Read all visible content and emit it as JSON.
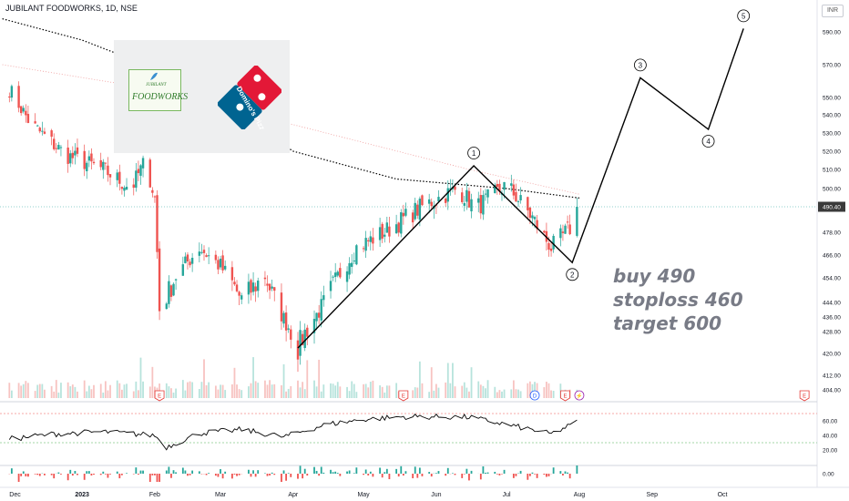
{
  "header": {
    "title": "JUBILANT FOODWORKS, 1D, NSE",
    "currency_button": "INR"
  },
  "logos": {
    "jubilant_small": "JUBILANT",
    "jubilant_big": "FOODWORKS",
    "dominos_text": "Domino's Pizza"
  },
  "trade_note": {
    "line1": "buy 490",
    "line2": "stoploss 460",
    "line3": "target 600"
  },
  "colors": {
    "up": "#26a69a",
    "down": "#ef5350",
    "wave": "#000000",
    "price_tag": "#3a3a3a"
  },
  "chart_data": [
    {
      "type": "candlestick",
      "title": "JUBILANT FOODWORKS, 1D, NSE",
      "currency": "INR",
      "ylim": [
        400,
        600
      ],
      "y_ticks": [
        404,
        412,
        420,
        428,
        436,
        444,
        454,
        466,
        478,
        490.4,
        500,
        510,
        520,
        530,
        540,
        550,
        570,
        590
      ],
      "y_tick_labels": [
        "404.00",
        "412.00",
        "420.00",
        "428.00",
        "436.00",
        "444.00",
        "454.00",
        "466.00",
        "478.00",
        "490.40",
        "500.00",
        "510.00",
        "520.00",
        "530.00",
        "540.00",
        "550.00",
        "570.00",
        "590.00"
      ],
      "last_price": 490.4,
      "x_ticks": [
        "Dec",
        "2023",
        "Feb",
        "Mar",
        "Apr",
        "May",
        "Jun",
        "Jul",
        "Aug",
        "Sep",
        "Oct"
      ],
      "price_anchors": [
        {
          "date": "2022-12-01",
          "close": 555
        },
        {
          "date": "2022-12-10",
          "close": 535
        },
        {
          "date": "2022-12-25",
          "close": 518
        },
        {
          "date": "2023-01-10",
          "close": 510
        },
        {
          "date": "2023-01-22",
          "close": 500
        },
        {
          "date": "2023-01-28",
          "close": 515
        },
        {
          "date": "2023-02-01",
          "close": 495
        },
        {
          "date": "2023-02-03",
          "close": 440
        },
        {
          "date": "2023-02-10",
          "close": 455
        },
        {
          "date": "2023-02-20",
          "close": 470
        },
        {
          "date": "2023-03-01",
          "close": 460
        },
        {
          "date": "2023-03-10",
          "close": 445
        },
        {
          "date": "2023-03-20",
          "close": 455
        },
        {
          "date": "2023-03-28",
          "close": 435
        },
        {
          "date": "2023-04-03",
          "close": 422
        },
        {
          "date": "2023-04-15",
          "close": 445
        },
        {
          "date": "2023-04-28",
          "close": 470
        },
        {
          "date": "2023-05-10",
          "close": 478
        },
        {
          "date": "2023-05-25",
          "close": 490
        },
        {
          "date": "2023-06-10",
          "close": 500
        },
        {
          "date": "2023-06-18",
          "close": 490
        },
        {
          "date": "2023-07-01",
          "close": 502
        },
        {
          "date": "2023-07-12",
          "close": 485
        },
        {
          "date": "2023-07-20",
          "close": 470
        },
        {
          "date": "2023-07-28",
          "close": 480
        },
        {
          "date": "2023-07-31",
          "close": 490.4
        }
      ],
      "moving_averages": [
        {
          "name": "",
          "style": "dotted",
          "points": [
            {
              "date": "2022-11-28",
              "v": 598
            },
            {
              "date": "2023-01-01",
              "v": 585
            },
            {
              "date": "2023-02-15",
              "v": 560
            },
            {
              "date": "2023-04-01",
              "v": 520
            },
            {
              "date": "2023-05-15",
              "v": 505
            },
            {
              "date": "2023-07-01",
              "v": 500
            },
            {
              "date": "2023-08-01",
              "v": 495
            }
          ]
        },
        {
          "name": "",
          "style": "faint",
          "points": [
            {
              "date": "2022-11-28",
              "v": 570
            },
            {
              "date": "2023-02-01",
              "v": 555
            },
            {
              "date": "2023-04-15",
              "v": 530
            },
            {
              "date": "2023-06-15",
              "v": 510
            },
            {
              "date": "2023-08-01",
              "v": 497
            }
          ]
        }
      ],
      "elliott_waves": [
        {
          "label": "",
          "date": "2023-04-03",
          "price": 422
        },
        {
          "label": "1",
          "date": "2023-06-17",
          "price": 512
        },
        {
          "label": "2",
          "date": "2023-07-29",
          "price": 462
        },
        {
          "label": "3",
          "date": "2023-08-27",
          "price": 562
        },
        {
          "label": "4",
          "date": "2023-09-25",
          "price": 532
        },
        {
          "label": "5",
          "date": "2023-10-10",
          "price": 592
        }
      ],
      "event_markers": [
        {
          "date": "2023-02-03",
          "label": "E"
        },
        {
          "date": "2023-05-18",
          "label": "E"
        },
        {
          "date": "2023-07-13",
          "label": "D"
        },
        {
          "date": "2023-07-26",
          "label": "E"
        },
        {
          "date": "2023-08-01",
          "label": "⚡"
        },
        {
          "date": "2023-11-05",
          "label": "E"
        }
      ]
    },
    {
      "type": "line",
      "title": "",
      "ylim": [
        0,
        85
      ],
      "y_ticks": [
        20,
        40,
        60
      ],
      "y_tick_labels": [
        "20.00",
        "40.00",
        "60.00"
      ],
      "levels": [
        70,
        30
      ],
      "series": [
        {
          "name": "",
          "values": [
            {
              "date": "2022-12-01",
              "v": 35
            },
            {
              "date": "2022-12-20",
              "v": 42
            },
            {
              "date": "2023-01-10",
              "v": 45
            },
            {
              "date": "2023-02-01",
              "v": 40
            },
            {
              "date": "2023-02-06",
              "v": 24
            },
            {
              "date": "2023-02-20",
              "v": 43
            },
            {
              "date": "2023-03-10",
              "v": 48
            },
            {
              "date": "2023-03-28",
              "v": 38
            },
            {
              "date": "2023-04-15",
              "v": 55
            },
            {
              "date": "2023-05-01",
              "v": 62
            },
            {
              "date": "2023-05-20",
              "v": 66
            },
            {
              "date": "2023-06-15",
              "v": 65
            },
            {
              "date": "2023-07-01",
              "v": 55
            },
            {
              "date": "2023-07-20",
              "v": 42
            },
            {
              "date": "2023-07-31",
              "v": 58
            }
          ]
        }
      ]
    },
    {
      "type": "bar",
      "title": "",
      "y_ticks": [
        0
      ],
      "y_tick_labels": [
        "0.00"
      ]
    }
  ]
}
